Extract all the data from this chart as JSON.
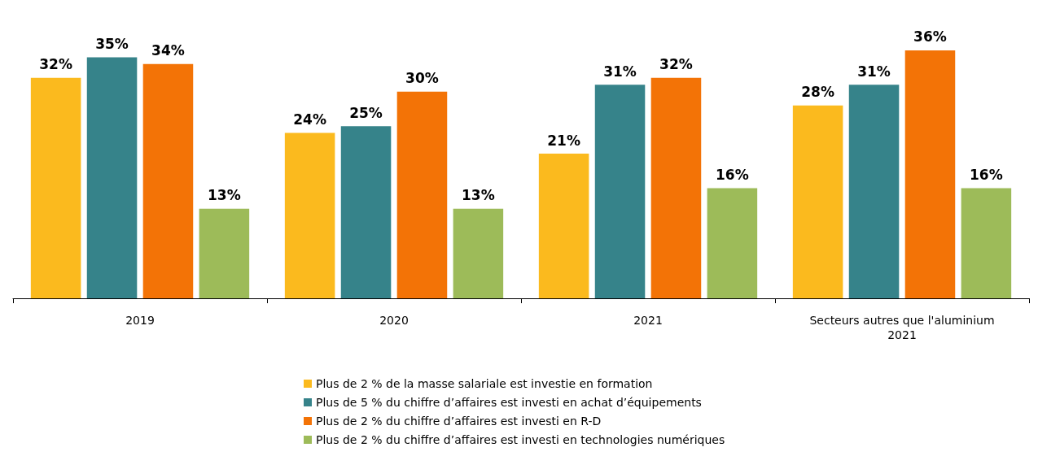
{
  "chart_data": {
    "type": "bar",
    "categories": [
      "2019",
      "2020",
      "2021",
      "Secteurs autres que l'aluminium\n2021"
    ],
    "series": [
      {
        "name": "Plus de 2 % de la masse salariale est investie en formation",
        "color": "#fbba1e",
        "values": [
          32,
          24,
          21,
          28
        ],
        "value_labels": [
          "32%",
          "24%",
          "21%",
          "28%"
        ]
      },
      {
        "name": "Plus de 5 % du chiffre d’affaires est investi en achat d’équipements",
        "color": "#36838a",
        "values": [
          35,
          25,
          31,
          31
        ],
        "value_labels": [
          "35%",
          "25%",
          "31%",
          "31%"
        ]
      },
      {
        "name": "Plus de 2 % du chiffre d’affaires est investi en R-D",
        "color": "#f37306",
        "values": [
          34,
          30,
          32,
          36
        ],
        "value_labels": [
          "34%",
          "30%",
          "32%",
          "36%"
        ]
      },
      {
        "name": "Plus de 2 % du chiffre d’affaires est investi en technologies numériques",
        "color": "#9dbb59",
        "values": [
          13,
          13,
          16,
          16
        ],
        "value_labels": [
          "13%",
          "13%",
          "16%",
          "16%"
        ]
      }
    ],
    "legend": "bottom"
  }
}
